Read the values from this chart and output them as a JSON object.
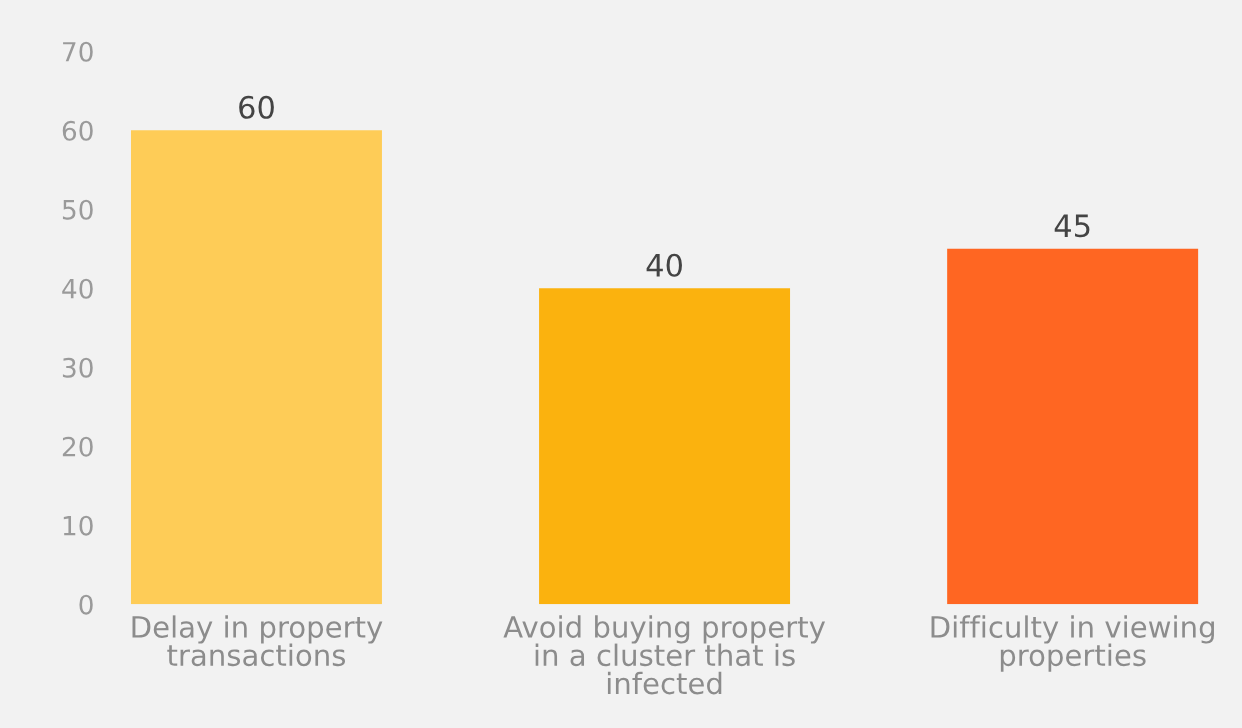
{
  "chart_data": {
    "type": "bar",
    "categories": [
      "Delay in property\ntransactions",
      "Avoid buying property\nin a cluster that is\ninfected",
      "Difficulty in viewing\nproperties"
    ],
    "values": [
      60,
      40,
      45
    ],
    "colors": [
      "#fecc57",
      "#fbb20e",
      "#ff6622"
    ],
    "ylim": [
      0,
      76.5
    ],
    "yticks": [
      0,
      10,
      20,
      30,
      40,
      50,
      60,
      70
    ],
    "data_labels": true,
    "grid": false,
    "legend": false
  }
}
